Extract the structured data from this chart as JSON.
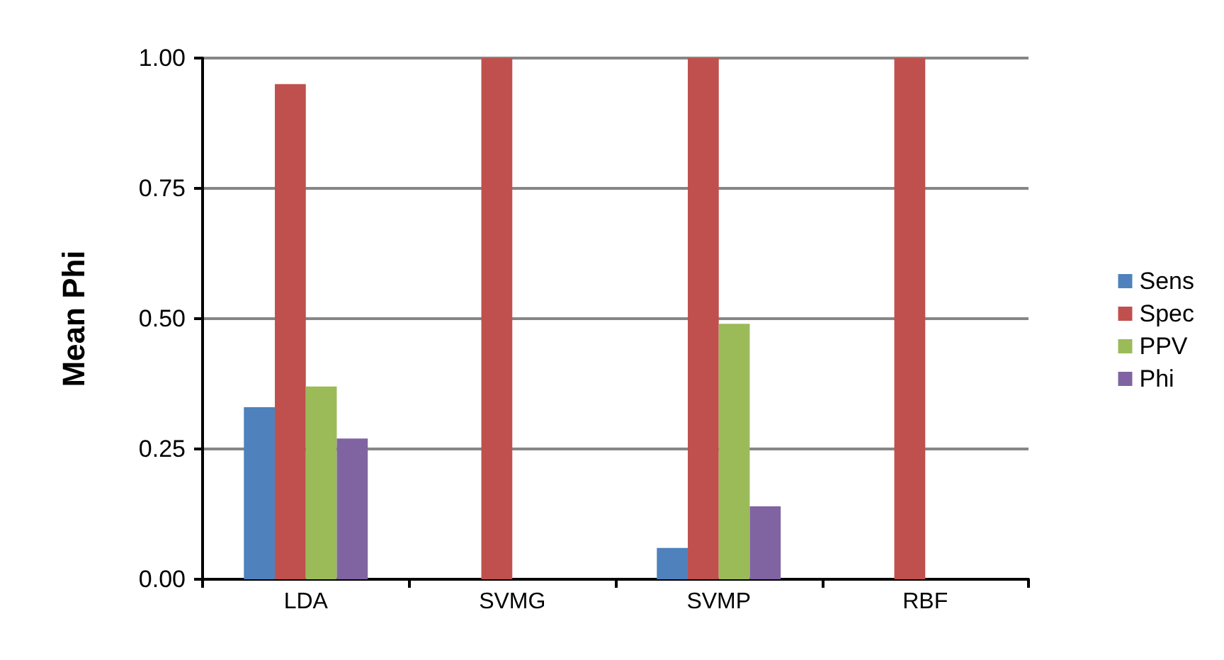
{
  "chart_data": {
    "type": "bar",
    "ylabel": "Mean Phi",
    "categories": [
      "LDA",
      "SVMG",
      "SVMP",
      "RBF"
    ],
    "series": [
      {
        "name": "Sens",
        "color": "#4f81bd",
        "values": [
          0.33,
          0,
          0.06,
          0
        ]
      },
      {
        "name": "Spec",
        "color": "#c0504d",
        "values": [
          0.95,
          1.0,
          1.0,
          1.0
        ]
      },
      {
        "name": "PPV",
        "color": "#9bbb59",
        "values": [
          0.37,
          0,
          0.49,
          0
        ]
      },
      {
        "name": "Phi",
        "color": "#8064a2",
        "values": [
          0.27,
          0,
          0.14,
          0
        ]
      }
    ],
    "ylim": [
      0,
      1
    ],
    "yticks": [
      {
        "value": 0,
        "label": "0.00"
      },
      {
        "value": 0.25,
        "label": "0.25"
      },
      {
        "value": 0.5,
        "label": "0.50"
      },
      {
        "value": 0.75,
        "label": "0.75"
      },
      {
        "value": 1,
        "label": "1.00"
      }
    ],
    "grid": "y",
    "legend": "right"
  }
}
